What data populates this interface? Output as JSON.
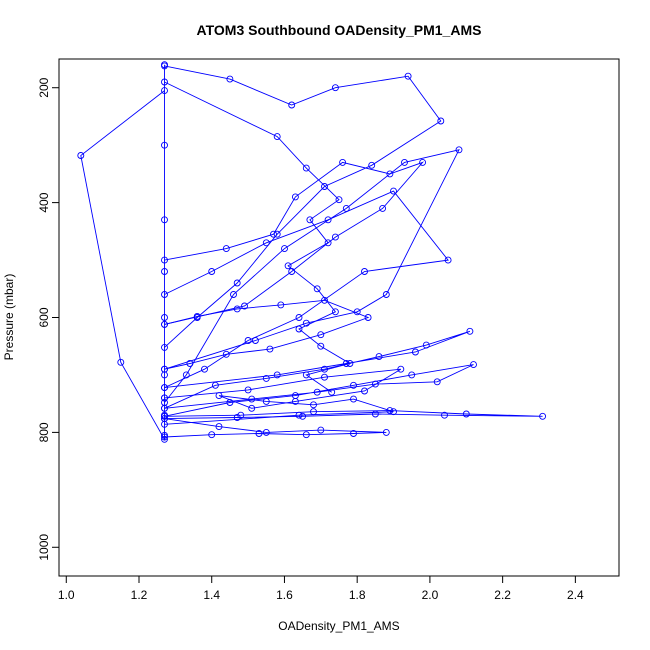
{
  "chart_data": {
    "type": "scatter",
    "title": "ATOM3 Southbound OADensity_PM1_AMS",
    "xlabel": "OADensity_PM1_AMS",
    "ylabel": "Pressure (mbar)",
    "xlim": [
      0.98,
      2.52
    ],
    "ylim": [
      1050,
      150
    ],
    "y_reversed": true,
    "grid": false,
    "connected": true,
    "color": "#0000ff",
    "x_ticks": [
      1.0,
      1.2,
      1.4,
      1.6,
      1.8,
      2.0,
      2.2,
      2.4
    ],
    "x_tick_labels": [
      "1.0",
      "1.2",
      "1.4",
      "1.6",
      "1.8",
      "2.0",
      "2.2",
      "2.4"
    ],
    "y_ticks": [
      200,
      400,
      600,
      800,
      1000
    ],
    "y_tick_labels": [
      "200",
      "400",
      "600",
      "800",
      "1000"
    ],
    "series": [
      {
        "x": [
          1.27,
          1.04,
          1.15,
          1.27,
          1.27,
          1.27,
          1.27,
          1.27,
          1.27,
          1.27,
          1.27,
          1.27,
          1.27
        ],
        "y": [
          205,
          318,
          678,
          812,
          805,
          770,
          740,
          700,
          600,
          520,
          430,
          300,
          160
        ]
      },
      {
        "x": [
          1.27,
          1.45,
          1.62,
          1.74,
          1.94,
          2.03,
          1.84,
          1.71,
          1.58,
          1.47,
          1.36,
          1.27
        ],
        "y": [
          162,
          185,
          230,
          200,
          180,
          258,
          335,
          372,
          455,
          540,
          600,
          652
        ]
      },
      {
        "x": [
          1.27,
          1.52,
          1.66,
          1.8,
          1.88,
          2.08,
          1.93,
          1.77,
          1.6,
          1.46,
          1.33,
          1.27
        ],
        "y": [
          690,
          640,
          610,
          590,
          560,
          308,
          330,
          410,
          480,
          560,
          700,
          748
        ]
      },
      {
        "x": [
          1.27,
          1.4,
          1.55,
          1.72,
          1.9,
          2.05,
          1.82,
          1.64,
          1.5,
          1.38,
          1.27
        ],
        "y": [
          560,
          520,
          470,
          430,
          380,
          500,
          520,
          600,
          640,
          690,
          722
        ]
      },
      {
        "x": [
          1.27,
          1.58,
          1.77,
          1.96,
          2.11,
          1.99,
          1.86,
          1.71,
          1.55,
          1.41,
          1.27
        ],
        "y": [
          722,
          700,
          680,
          660,
          624,
          648,
          668,
          690,
          706,
          718,
          758
        ]
      },
      {
        "x": [
          1.27,
          1.51,
          1.69,
          1.85,
          2.02,
          2.12,
          1.95,
          1.79,
          1.63,
          1.45,
          1.27
        ],
        "y": [
          758,
          742,
          730,
          716,
          712,
          682,
          700,
          718,
          736,
          748,
          772
        ]
      },
      {
        "x": [
          1.27,
          1.48,
          1.68,
          1.89,
          2.1,
          2.31,
          2.04,
          1.85,
          1.65,
          1.47,
          1.27
        ],
        "y": [
          772,
          770,
          764,
          762,
          768,
          772,
          770,
          768,
          772,
          774,
          776
        ]
      },
      {
        "x": [
          1.27,
          1.42,
          1.55,
          1.7,
          1.88,
          1.79,
          1.66,
          1.53,
          1.4,
          1.27
        ],
        "y": [
          776,
          790,
          800,
          796,
          800,
          802,
          804,
          802,
          804,
          808
        ]
      },
      {
        "x": [
          1.27,
          1.58,
          1.66,
          1.75,
          1.67,
          1.72,
          1.61,
          1.69,
          1.74,
          1.64,
          1.7,
          1.78,
          1.66,
          1.73
        ],
        "y": [
          190,
          285,
          340,
          395,
          430,
          470,
          510,
          550,
          590,
          620,
          650,
          680,
          700,
          730
        ]
      },
      {
        "x": [
          1.27,
          1.36,
          1.47,
          1.59,
          1.71,
          1.83,
          1.7,
          1.56,
          1.44,
          1.34,
          1.27
        ],
        "y": [
          612,
          598,
          585,
          578,
          570,
          600,
          630,
          655,
          664,
          680,
          690
        ]
      },
      {
        "x": [
          1.27,
          1.44,
          1.57,
          1.63,
          1.76,
          1.89,
          1.98,
          1.87,
          1.74,
          1.62,
          1.49,
          1.27
        ],
        "y": [
          500,
          480,
          455,
          390,
          330,
          350,
          330,
          410,
          460,
          520,
          580,
          612
        ]
      },
      {
        "x": [
          1.27,
          1.5,
          1.71,
          1.92,
          1.82,
          1.63,
          1.51,
          1.42,
          1.55,
          1.68,
          1.79,
          1.9,
          1.64,
          1.27
        ],
        "y": [
          740,
          726,
          704,
          690,
          728,
          746,
          758,
          736,
          746,
          752,
          742,
          764,
          770,
          786
        ]
      }
    ]
  }
}
